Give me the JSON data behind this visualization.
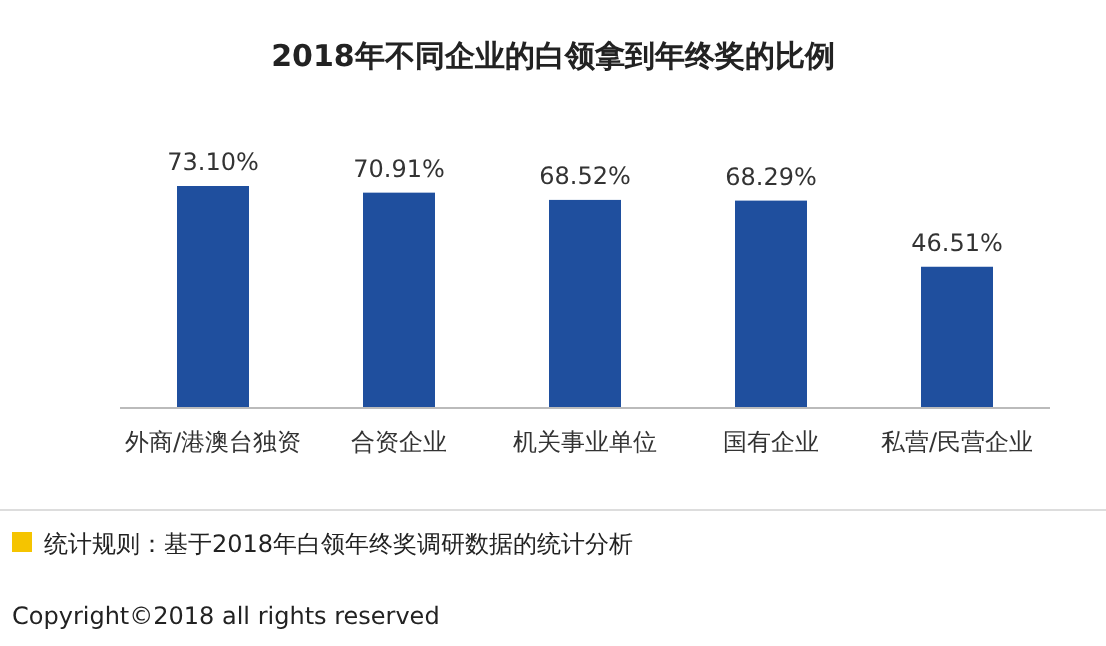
{
  "chart_data": {
    "type": "bar",
    "title": "2018年不同企业的白领拿到年终奖的比例",
    "categories": [
      "外商/港澳台独资",
      "合资企业",
      "机关事业单位",
      "国有企业",
      "私营/民营企业"
    ],
    "values": [
      73.1,
      70.91,
      68.52,
      68.29,
      46.51
    ],
    "value_labels": [
      "73.10%",
      "70.91%",
      "68.52%",
      "68.29%",
      "46.51%"
    ],
    "color": "#1f4f9e",
    "annotations": [
      "统计规则：基于2018年白领年终奖调研数据的统计分析",
      "Copyright©2018 all rights reserved"
    ]
  }
}
